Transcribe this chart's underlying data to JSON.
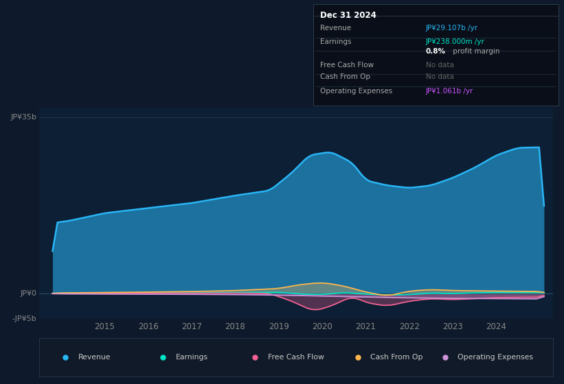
{
  "bg_color": "#0e1a2b",
  "chart_bg": "#0e1a2b",
  "panel_bg": "#111111",
  "revenue_color": "#29b6f6",
  "earnings_color": "#00e5c8",
  "fcf_color": "#f06292",
  "cashfromop_color": "#ffb74d",
  "opex_color": "#ce93d8",
  "ylim": [
    -5000000000.0,
    37000000000.0
  ],
  "xlim_year": [
    2013.5,
    2025.3
  ],
  "xtick_years": [
    2015,
    2016,
    2017,
    2018,
    2019,
    2020,
    2021,
    2022,
    2023,
    2024
  ],
  "legend": [
    {
      "label": "Revenue",
      "color": "#29b6f6"
    },
    {
      "label": "Earnings",
      "color": "#00e5c8"
    },
    {
      "label": "Free Cash Flow",
      "color": "#f06292"
    },
    {
      "label": "Cash From Op",
      "color": "#ffb74d"
    },
    {
      "label": "Operating Expenses",
      "color": "#ce93d8"
    }
  ],
  "info_title": "Dec 31 2024",
  "info_rows": [
    {
      "label": "Revenue",
      "value": "JP¥29.107b /yr",
      "value_color": "#29b6f6"
    },
    {
      "label": "Earnings",
      "value": "JP¥238.000m /yr",
      "value_color": "#00e5c8"
    },
    {
      "label": "",
      "value": "0.8% profit margin",
      "value_color": "#aaaaaa"
    },
    {
      "label": "Free Cash Flow",
      "value": "No data",
      "value_color": "#666666"
    },
    {
      "label": "Cash From Op",
      "value": "No data",
      "value_color": "#666666"
    },
    {
      "label": "Operating Expenses",
      "value": "JP¥1.061b /yr",
      "value_color": "#cc55ff"
    }
  ]
}
